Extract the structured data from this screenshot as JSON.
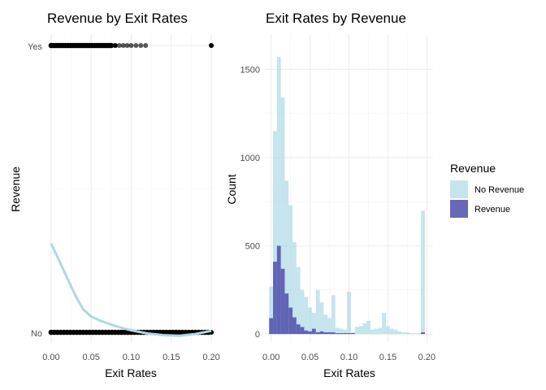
{
  "chart_data": [
    {
      "type": "scatter",
      "title": "Revenue by Exit Rates",
      "xlabel": "Exit Rates",
      "ylabel": "Revenue",
      "xlim": [
        -0.005,
        0.205
      ],
      "x_ticks": [
        0.0,
        0.05,
        0.1,
        0.15,
        0.2
      ],
      "x_tick_labels": [
        "0.00",
        "0.05",
        "0.10",
        "0.15",
        "0.20"
      ],
      "y_categories": [
        "No",
        "Yes"
      ],
      "grid": true,
      "point_color": "#000000",
      "smooth_color": "#add8e6",
      "points": {
        "Yes": [
          0.0,
          0.003,
          0.006,
          0.009,
          0.012,
          0.015,
          0.018,
          0.021,
          0.024,
          0.027,
          0.03,
          0.033,
          0.036,
          0.039,
          0.042,
          0.045,
          0.048,
          0.051,
          0.054,
          0.057,
          0.06,
          0.063,
          0.066,
          0.069,
          0.072,
          0.075,
          0.08,
          0.085,
          0.09,
          0.095,
          0.1,
          0.106,
          0.112,
          0.118,
          0.2
        ],
        "No": [
          0.0,
          0.004,
          0.008,
          0.012,
          0.016,
          0.02,
          0.024,
          0.028,
          0.032,
          0.036,
          0.04,
          0.044,
          0.048,
          0.052,
          0.056,
          0.06,
          0.064,
          0.068,
          0.072,
          0.076,
          0.08,
          0.084,
          0.088,
          0.092,
          0.096,
          0.1,
          0.104,
          0.108,
          0.112,
          0.116,
          0.12,
          0.124,
          0.128,
          0.132,
          0.136,
          0.14,
          0.144,
          0.148,
          0.152,
          0.156,
          0.16,
          0.164,
          0.168,
          0.172,
          0.176,
          0.18,
          0.184,
          0.188,
          0.192,
          0.196,
          0.2
        ]
      },
      "smooth_curve": {
        "x": [
          0.0,
          0.01,
          0.02,
          0.03,
          0.04,
          0.05,
          0.06,
          0.07,
          0.08,
          0.09,
          0.1,
          0.12,
          0.14,
          0.16,
          0.18,
          0.2
        ],
        "y": [
          0.31,
          0.25,
          0.19,
          0.13,
          0.08,
          0.055,
          0.042,
          0.032,
          0.022,
          0.014,
          0.007,
          -0.004,
          -0.01,
          -0.012,
          -0.006,
          0.005
        ]
      }
    },
    {
      "type": "bar",
      "title": "Exit Rates by Revenue",
      "xlabel": "Exit Rates",
      "ylabel": "Count",
      "xlim": [
        -0.008,
        0.208
      ],
      "ylim": [
        -50,
        1700
      ],
      "x_ticks": [
        0.0,
        0.05,
        0.1,
        0.15,
        0.2
      ],
      "x_tick_labels": [
        "0.00",
        "0.05",
        "0.10",
        "0.15",
        "0.20"
      ],
      "y_ticks": [
        0,
        500,
        1000,
        1500
      ],
      "y_tick_labels": [
        "0",
        "500",
        "1000",
        "1500"
      ],
      "grid": true,
      "bin_width": 0.005,
      "bin_starts": [
        -0.0025,
        0.0025,
        0.0075,
        0.0125,
        0.0175,
        0.0225,
        0.0275,
        0.0325,
        0.0375,
        0.0425,
        0.0475,
        0.0525,
        0.0575,
        0.0625,
        0.0675,
        0.0725,
        0.0775,
        0.0825,
        0.0875,
        0.0925,
        0.0975,
        0.1025,
        0.1075,
        0.1125,
        0.1175,
        0.1225,
        0.1275,
        0.1325,
        0.1375,
        0.1425,
        0.1475,
        0.1525,
        0.1575,
        0.1625,
        0.1675,
        0.1725,
        0.1775,
        0.1825,
        0.1875,
        0.1925,
        0.1975
      ],
      "series": [
        {
          "name": "No Revenue",
          "color": "#add8e6",
          "values": [
            270,
            1150,
            1570,
            1340,
            870,
            730,
            520,
            380,
            250,
            210,
            150,
            120,
            250,
            180,
            110,
            90,
            220,
            35,
            30,
            25,
            240,
            10,
            40,
            45,
            60,
            75,
            25,
            30,
            35,
            120,
            45,
            30,
            25,
            15,
            10,
            10,
            5,
            5,
            5,
            700,
            0
          ]
        },
        {
          "name": "Revenue",
          "color": "#4d4dab",
          "values": [
            90,
            410,
            500,
            370,
            230,
            150,
            95,
            55,
            40,
            20,
            15,
            30,
            10,
            15,
            10,
            10,
            10,
            5,
            5,
            5,
            5,
            5,
            0,
            0,
            0,
            0,
            0,
            0,
            0,
            0,
            0,
            0,
            0,
            0,
            0,
            0,
            0,
            0,
            0,
            10,
            0
          ]
        }
      ],
      "legend": {
        "title": "Revenue",
        "placement": "right",
        "entries": [
          "No Revenue",
          "Revenue"
        ]
      }
    }
  ]
}
